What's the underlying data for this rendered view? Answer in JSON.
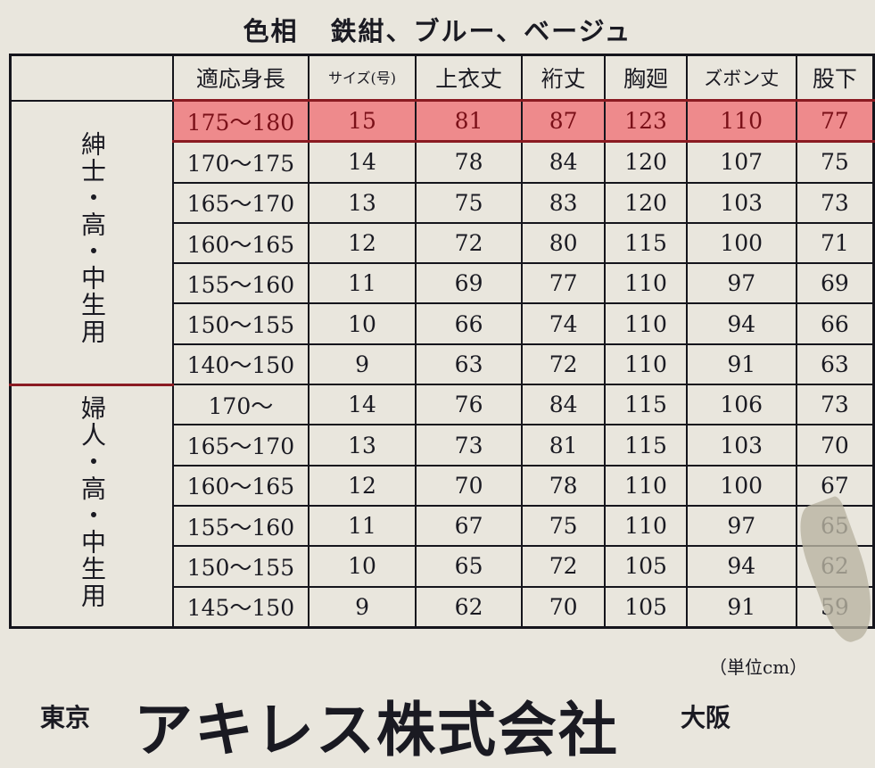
{
  "title": {
    "label": "色相",
    "colors": "鉄紺、ブルー、ベージュ"
  },
  "headers": [
    "適応身長",
    "サイズ(号)",
    "上衣丈",
    "裄丈",
    "胸廻",
    "ズボン丈",
    "股下"
  ],
  "groups": [
    {
      "label": "紳士・高・中生用",
      "rows": [
        [
          "175～180",
          "15",
          "81",
          "87",
          "123",
          "110",
          "77"
        ],
        [
          "170～175",
          "14",
          "78",
          "84",
          "120",
          "107",
          "75"
        ],
        [
          "165～170",
          "13",
          "75",
          "83",
          "120",
          "103",
          "73"
        ],
        [
          "160～165",
          "12",
          "72",
          "80",
          "115",
          "100",
          "71"
        ],
        [
          "155～160",
          "11",
          "69",
          "77",
          "110",
          "97",
          "69"
        ],
        [
          "150～155",
          "10",
          "66",
          "74",
          "110",
          "94",
          "66"
        ],
        [
          "140～150",
          "9",
          "63",
          "72",
          "110",
          "91",
          "63"
        ]
      ]
    },
    {
      "label": "婦人・高・中生用",
      "rows": [
        [
          "170～",
          "14",
          "76",
          "84",
          "115",
          "106",
          "73"
        ],
        [
          "165～170",
          "13",
          "73",
          "81",
          "115",
          "103",
          "70"
        ],
        [
          "160～165",
          "12",
          "70",
          "78",
          "110",
          "100",
          "67"
        ],
        [
          "155～160",
          "11",
          "67",
          "75",
          "110",
          "97",
          "65"
        ],
        [
          "150～155",
          "10",
          "65",
          "72",
          "105",
          "94",
          "62"
        ],
        [
          "145～150",
          "9",
          "62",
          "70",
          "105",
          "91",
          "59"
        ]
      ]
    }
  ],
  "highlighted_row": {
    "group": 0,
    "row": 0,
    "color": "#ee8a8c"
  },
  "unit": "（単位cm）",
  "footer": {
    "left": "東京",
    "company": "アキレス株式会社",
    "right": "大阪"
  }
}
